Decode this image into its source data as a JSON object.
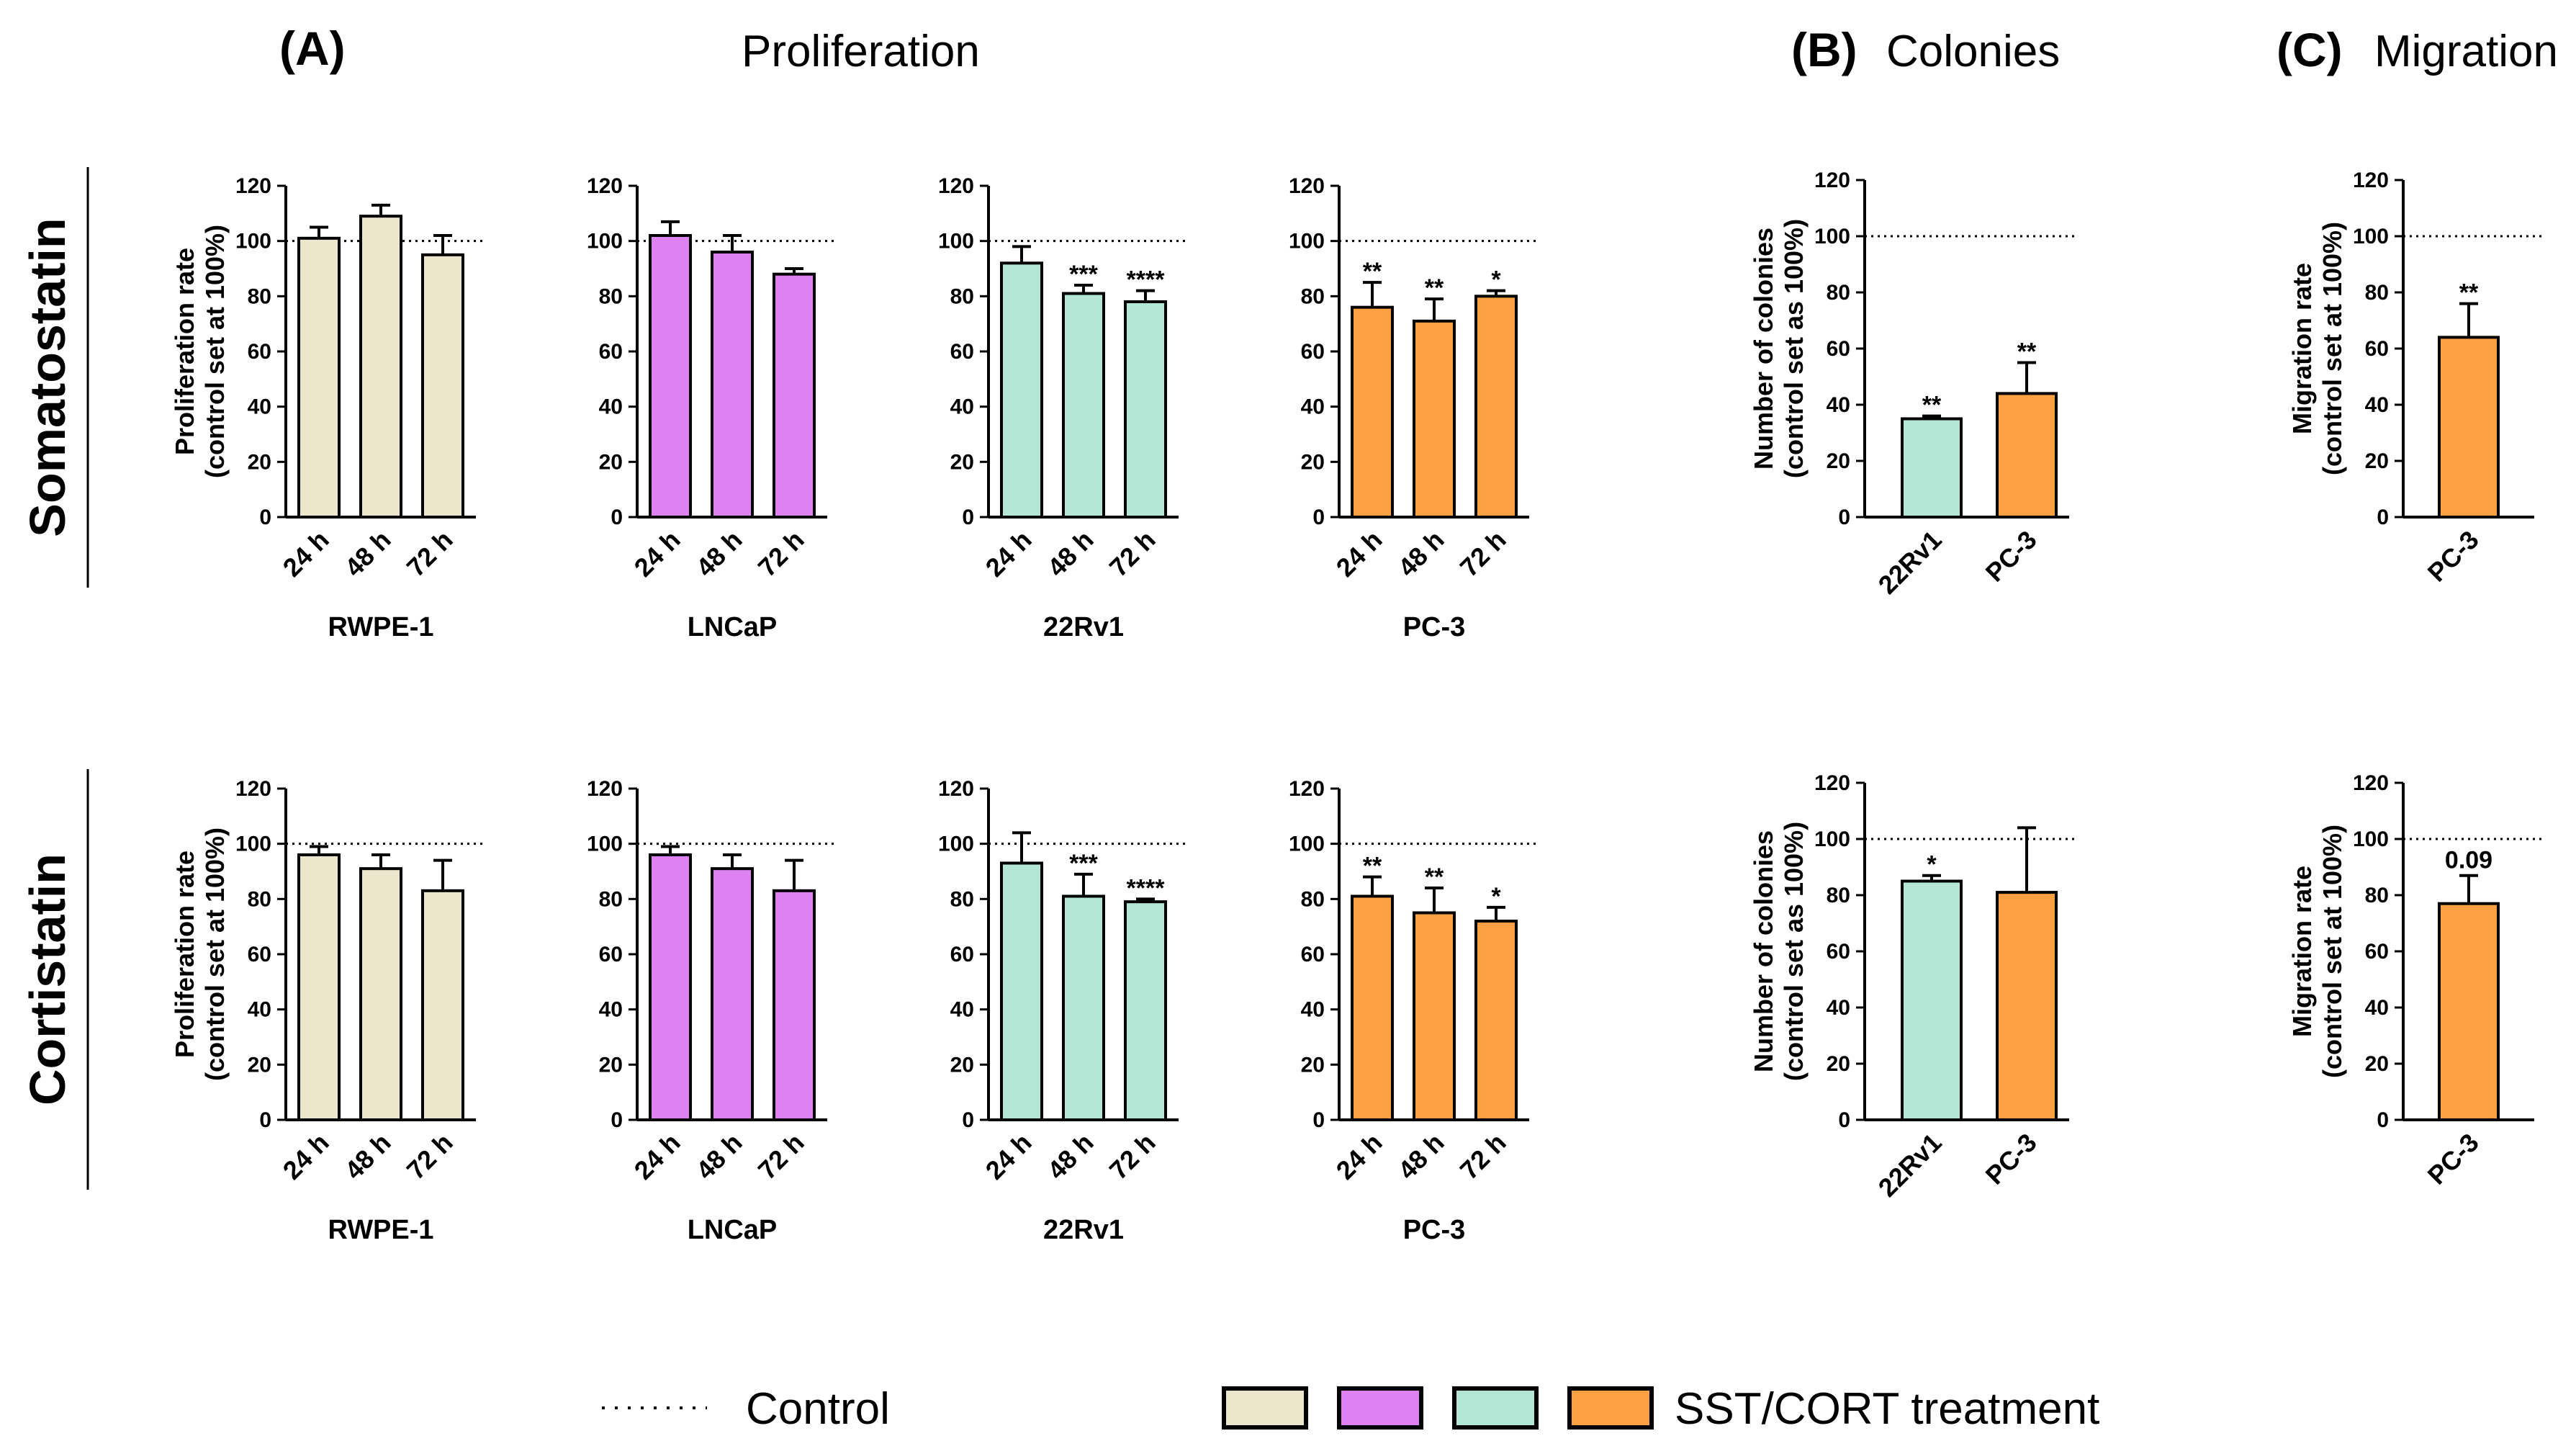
{
  "headers": {
    "A_letter": "(A)",
    "A_title": "Proliferation",
    "B_letter": "(B)",
    "B_title": "Colonies",
    "C_letter": "(C)",
    "C_title": "Migration"
  },
  "rows": [
    "Somatostatin",
    "Cortistatin"
  ],
  "legend": {
    "control_label": "Control",
    "treatment_label": "SST/CORT treatment",
    "swatch_colors": [
      "#ece6cc",
      "#dd82f0",
      "#b3e6d4",
      "#fba143"
    ]
  },
  "colors": {
    "RWPE-1": "#ece6cc",
    "LNCaP": "#dd82f0",
    "22Rv1": "#b3e6d4",
    "PC-3": "#fba143"
  },
  "chart_data": [
    {
      "id": "A-sst-rwpe1",
      "panel": "A",
      "row": "Somatostatin",
      "type": "bar",
      "categories": [
        "24 h",
        "48 h",
        "72 h"
      ],
      "values": [
        101,
        109,
        95
      ],
      "errors": [
        4,
        4,
        7
      ],
      "significance": [
        "",
        "",
        ""
      ],
      "title": "RWPE-1",
      "ylabel": "Proliferation rate (control set at 100%)",
      "ylabel_lines": [
        "Proliferation rate",
        "(control set at 100%)"
      ],
      "ylim": [
        0,
        120
      ],
      "yticks": [
        0,
        20,
        40,
        60,
        80,
        100,
        120
      ],
      "reference_line": 100,
      "color": "#ece6cc"
    },
    {
      "id": "A-sst-lncap",
      "panel": "A",
      "row": "Somatostatin",
      "type": "bar",
      "categories": [
        "24 h",
        "48 h",
        "72 h"
      ],
      "values": [
        102,
        96,
        88
      ],
      "errors": [
        5,
        6,
        2
      ],
      "significance": [
        "",
        "",
        ""
      ],
      "title": "LNCaP",
      "ylim": [
        0,
        120
      ],
      "yticks": [
        0,
        20,
        40,
        60,
        80,
        100,
        120
      ],
      "reference_line": 100,
      "color": "#dd82f0"
    },
    {
      "id": "A-sst-22rv1",
      "panel": "A",
      "row": "Somatostatin",
      "type": "bar",
      "categories": [
        "24 h",
        "48 h",
        "72 h"
      ],
      "values": [
        92,
        81,
        78
      ],
      "errors": [
        6,
        3,
        4
      ],
      "significance": [
        "",
        "***",
        "****"
      ],
      "title": "22Rv1",
      "ylim": [
        0,
        120
      ],
      "yticks": [
        0,
        20,
        40,
        60,
        80,
        100,
        120
      ],
      "reference_line": 100,
      "color": "#b3e6d4"
    },
    {
      "id": "A-sst-pc3",
      "panel": "A",
      "row": "Somatostatin",
      "type": "bar",
      "categories": [
        "24 h",
        "48 h",
        "72 h"
      ],
      "values": [
        76,
        71,
        80
      ],
      "errors": [
        9,
        8,
        2
      ],
      "significance": [
        "**",
        "**",
        "*"
      ],
      "title": "PC-3",
      "ylim": [
        0,
        120
      ],
      "yticks": [
        0,
        20,
        40,
        60,
        80,
        100,
        120
      ],
      "reference_line": 100,
      "color": "#fba143"
    },
    {
      "id": "B-sst",
      "panel": "B",
      "row": "Somatostatin",
      "type": "bar",
      "categories": [
        "22Rv1",
        "PC-3"
      ],
      "values": [
        35,
        44
      ],
      "errors": [
        1,
        11
      ],
      "significance": [
        "**",
        "**"
      ],
      "title": "",
      "ylabel": "Number of colonies (control set as 100%)",
      "ylabel_lines": [
        "Number of colonies",
        "(control set as 100%)"
      ],
      "ylim": [
        0,
        120
      ],
      "yticks": [
        0,
        20,
        40,
        60,
        80,
        100,
        120
      ],
      "reference_line": 100,
      "colors": [
        "#b3e6d4",
        "#fba143"
      ]
    },
    {
      "id": "C-sst",
      "panel": "C",
      "row": "Somatostatin",
      "type": "bar",
      "categories": [
        "PC-3"
      ],
      "values": [
        64
      ],
      "errors": [
        12
      ],
      "significance": [
        "**"
      ],
      "title": "",
      "ylabel": "Migration rate (control set at 100%)",
      "ylabel_lines": [
        "Migration rate",
        "(control set at 100%)"
      ],
      "ylim": [
        0,
        120
      ],
      "yticks": [
        0,
        20,
        40,
        60,
        80,
        100,
        120
      ],
      "reference_line": 100,
      "color": "#fba143"
    },
    {
      "id": "A-cort-rwpe1",
      "panel": "A",
      "row": "Cortistatin",
      "type": "bar",
      "categories": [
        "24 h",
        "48 h",
        "72 h"
      ],
      "values": [
        96,
        91,
        83
      ],
      "errors": [
        3,
        5,
        11
      ],
      "significance": [
        "",
        "",
        ""
      ],
      "title": "RWPE-1",
      "ylabel": "Proliferation rate (control set at 100%)",
      "ylabel_lines": [
        "Proliferation rate",
        "(control set at 100%)"
      ],
      "ylim": [
        0,
        120
      ],
      "yticks": [
        0,
        20,
        40,
        60,
        80,
        100,
        120
      ],
      "reference_line": 100,
      "color": "#ece6cc"
    },
    {
      "id": "A-cort-lncap",
      "panel": "A",
      "row": "Cortistatin",
      "type": "bar",
      "categories": [
        "24 h",
        "48 h",
        "72 h"
      ],
      "values": [
        96,
        91,
        83
      ],
      "errors": [
        3,
        5,
        11
      ],
      "significance": [
        "",
        "",
        ""
      ],
      "title": "LNCaP",
      "ylim": [
        0,
        120
      ],
      "yticks": [
        0,
        20,
        40,
        60,
        80,
        100,
        120
      ],
      "reference_line": 100,
      "color": "#dd82f0"
    },
    {
      "id": "A-cort-22rv1",
      "panel": "A",
      "row": "Cortistatin",
      "type": "bar",
      "categories": [
        "24 h",
        "48 h",
        "72 h"
      ],
      "values": [
        93,
        81,
        79
      ],
      "errors": [
        11,
        8,
        1
      ],
      "significance": [
        "",
        "***",
        "****"
      ],
      "title": "22Rv1",
      "ylim": [
        0,
        120
      ],
      "yticks": [
        0,
        20,
        40,
        60,
        80,
        100,
        120
      ],
      "reference_line": 100,
      "color": "#b3e6d4"
    },
    {
      "id": "A-cort-pc3",
      "panel": "A",
      "row": "Cortistatin",
      "type": "bar",
      "categories": [
        "24 h",
        "48 h",
        "72 h"
      ],
      "values": [
        81,
        75,
        72
      ],
      "errors": [
        7,
        9,
        5
      ],
      "significance": [
        "**",
        "**",
        "*"
      ],
      "title": "PC-3",
      "ylim": [
        0,
        120
      ],
      "yticks": [
        0,
        20,
        40,
        60,
        80,
        100,
        120
      ],
      "reference_line": 100,
      "color": "#fba143"
    },
    {
      "id": "B-cort",
      "panel": "B",
      "row": "Cortistatin",
      "type": "bar",
      "categories": [
        "22Rv1",
        "PC-3"
      ],
      "values": [
        85,
        81
      ],
      "errors": [
        2,
        23
      ],
      "significance": [
        "*",
        ""
      ],
      "title": "",
      "ylabel": "Number of colonies (control set as 100%)",
      "ylabel_lines": [
        "Number of colonies",
        "(control set as 100%)"
      ],
      "ylim": [
        0,
        120
      ],
      "yticks": [
        0,
        20,
        40,
        60,
        80,
        100,
        120
      ],
      "reference_line": 100,
      "colors": [
        "#b3e6d4",
        "#fba143"
      ]
    },
    {
      "id": "C-cort",
      "panel": "C",
      "row": "Cortistatin",
      "type": "bar",
      "categories": [
        "PC-3"
      ],
      "values": [
        77
      ],
      "errors": [
        10
      ],
      "significance": [
        "0.09"
      ],
      "title": "",
      "ylabel": "Migration rate (control set at 100%)",
      "ylabel_lines": [
        "Migration rate",
        "(control set at 100%)"
      ],
      "ylim": [
        0,
        120
      ],
      "yticks": [
        0,
        20,
        40,
        60,
        80,
        100,
        120
      ],
      "reference_line": 100,
      "color": "#fba143"
    }
  ]
}
